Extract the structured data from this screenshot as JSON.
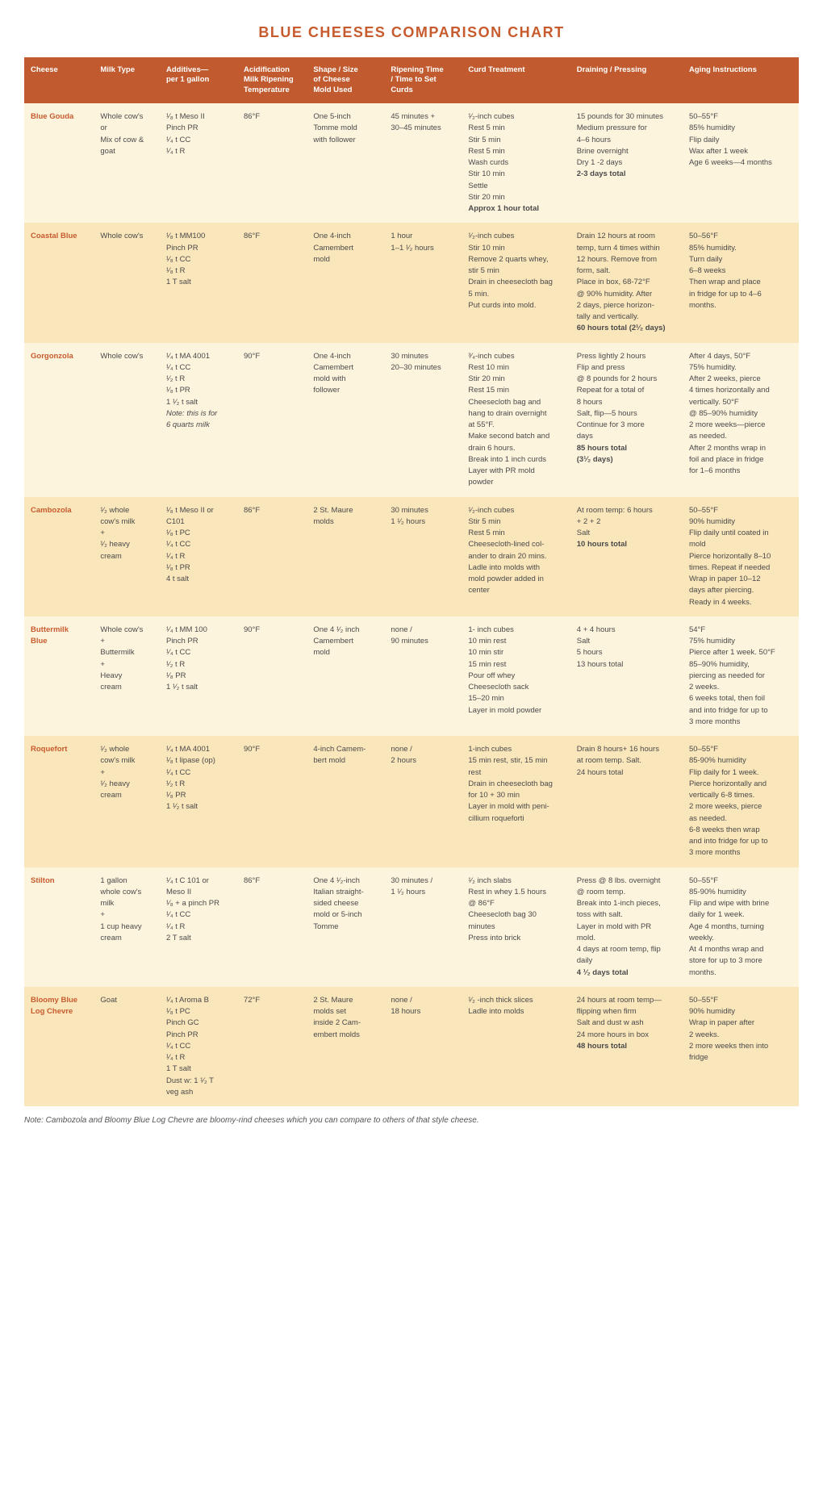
{
  "title": "BLUE CHEESES COMPARISON CHART",
  "footnote": "Note: Cambozola and Bloomy Blue Log Chevre are bloomy-rind cheeses which you can compare to others of that style cheese.",
  "columns": [
    "Cheese",
    "Milk Type",
    "Additives—\nper 1 gallon",
    "Acidification\nMilk Ripening\nTemperature",
    "Shape / Size\nof Cheese\nMold Used",
    "Ripening Time\n/ Time to Set\nCurds",
    "Curd Treatment",
    "Draining / Pressing",
    "Aging Instructions"
  ],
  "rows": [
    {
      "name": "Blue Gouda",
      "cells": [
        "Whole cow's\nor\nMix of cow &\ngoat",
        "¹⁄₈ t Meso II\nPinch PR\n¹⁄₄ t CC\n¹⁄₄ t R",
        "86°F",
        "One 5-inch\nTomme mold\nwith follower",
        "45 minutes +\n30–45 minutes",
        "¹⁄₂-inch cubes\nRest 5 min\nStir 5 min\nRest 5 min\nWash curds\nStir 10 min\nSettle\nStir 20 min\n<b>Approx 1 hour total</b>",
        "15 pounds for 30 minutes\nMedium pressure for\n4–6 hours\nBrine overnight\nDry 1 -2 days\n<b>2-3 days total</b>",
        "50–55°F\n85% humidity\nFlip daily\nWax after 1 week\nAge 6 weeks—4 months"
      ]
    },
    {
      "name": "Coastal Blue",
      "cells": [
        "Whole cow's",
        "¹⁄₈ t MM100\nPinch PR\n¹⁄₈ t CC\n¹⁄₈ t R\n1 T salt",
        "86°F",
        "One 4-inch\nCamembert\nmold",
        "1 hour\n1–1 ¹⁄₂ hours",
        "¹⁄₂-inch cubes\nStir 10 min\nRemove 2 quarts whey,\nstir 5 min\nDrain in cheesecloth bag\n5 min.\nPut curds into mold.",
        "Drain 12 hours at room\ntemp, turn 4 times within\n12 hours. Remove from\nform, salt.\nPlace in box, 68-72°F\n@ 90% humidity. After\n2 days, pierce horizon-\ntally and vertically.\n<b>60 hours total (2¹⁄₂ days)</b>",
        "50–56°F\n85% humidity.\nTurn daily\n6–8 weeks\nThen wrap and place\nin fridge for up to 4–6\nmonths."
      ]
    },
    {
      "name": "Gorgonzola",
      "cells": [
        "Whole cow's",
        "¹⁄₄ t MA 4001\n¹⁄₄ t CC\n¹⁄₂ t R\n¹⁄₈ t PR\n1 ¹⁄₂ t salt\n<i>Note: this is for\n6 quarts milk</i>",
        "90°F",
        "One 4-inch\nCamembert\nmold with\nfollower",
        "30 minutes\n20–30 minutes",
        "³⁄₄-inch cubes\nRest 10 min\nStir 20 min\nRest 15 min\nCheesecloth bag and\nhang to drain overnight\nat 55°F.\nMake second batch and\ndrain 6 hours.\nBreak into 1 inch curds\nLayer with PR mold\npowder",
        "Press lightly 2 hours\nFlip and press\n@ 8 pounds for 2 hours\nRepeat for a total of\n8 hours\nSalt, flip—5 hours\nContinue for 3 more\ndays\n<b>85 hours total\n(3¹⁄₂ days)</b>",
        "After 4 days, 50°F\n75% humidity.\nAfter 2 weeks, pierce\n4 times horizontally and\nvertically. 50°F\n@ 85–90% humidity\n2 more weeks—pierce\nas needed.\nAfter 2 months wrap in\nfoil and place in fridge\nfor 1–6 months"
      ]
    },
    {
      "name": "Cambozola",
      "cells": [
        "¹⁄₂ whole\ncow's milk\n+\n¹⁄₂ heavy\ncream",
        "¹⁄₈ t Meso II or\nC101\n¹⁄₈ t PC\n¹⁄₄ t CC\n¹⁄₄ t R\n¹⁄₈ t PR\n4 t salt",
        "86°F",
        "2 St. Maure\nmolds",
        "30 minutes\n1 ¹⁄₂ hours",
        "¹⁄₂-inch cubes\nStir 5 min\nRest 5 min\nCheesecloth-lined col-\nander to drain 20 mins.\nLadle into molds with\nmold powder added in\ncenter",
        "At room temp: 6 hours\n+ 2 + 2\nSalt\n<b>10 hours total</b>",
        "50–55°F\n90% humidity\nFlip daily until coated in\nmold\nPierce horizontally 8–10\ntimes. Repeat if needed\nWrap in paper 10–12\ndays after piercing.\nReady in 4 weeks."
      ]
    },
    {
      "name": "Buttermilk\nBlue",
      "cells": [
        "Whole cow's\n+\nButtermilk\n+\nHeavy\ncream",
        "¹⁄₄ t MM 100\nPinch PR\n¹⁄₄ t CC\n¹⁄₂ t R\n¹⁄₈ PR\n1 ¹⁄₂ t salt",
        "90°F",
        "One 4 ¹⁄₂ inch\nCamembert\nmold",
        "none /\n90 minutes",
        "1- inch cubes\n10 min rest\n10 min stir\n15 min rest\nPour off whey\nCheesecloth sack\n15–20 min\nLayer in mold powder",
        "4 + 4 hours\nSalt\n5 hours\n13 hours total",
        "54°F\n75% humidity\nPierce after 1 week. 50°F\n85–90% humidity,\npiercing as needed for\n2 weeks.\n6 weeks total, then foil\nand into fridge for up to\n3 more months"
      ]
    },
    {
      "name": "Roquefort",
      "cells": [
        "¹⁄₂ whole\ncow's milk\n+\n¹⁄₂ heavy\ncream",
        "¹⁄₄ t MA 4001\n¹⁄₈ t lipase (op)\n¹⁄₄ t CC\n¹⁄₂ t R\n¹⁄₈ PR\n1 ¹⁄₂ t salt",
        "90°F",
        "4-inch Camem-\nbert mold",
        "none /\n2 hours",
        "1-inch cubes\n15 min rest, stir, 15 min\nrest\nDrain in cheesecloth bag\nfor 10 + 30 min\nLayer in mold with peni-\ncillium roqueforti",
        "Drain 8 hours+ 16 hours\nat room temp. Salt.\n24 hours total",
        "50–55°F\n85-90% humidity\nFlip daily for 1 week.\nPierce horizontally and\nvertically 6-8 times.\n2 more weeks, pierce\nas needed.\n6-8 weeks then wrap\nand into fridge for up to\n3 more months"
      ]
    },
    {
      "name": "Stilton",
      "cells": [
        "1 gallon\nwhole cow's\nmilk\n+\n1 cup heavy\ncream",
        "¹⁄₄ t C 101 or\nMeso II\n¹⁄₈ + a pinch PR\n¹⁄₄ t CC\n¹⁄₄ t R\n2 T salt",
        "86°F",
        "One 4 ¹⁄₂-inch\nItalian straight-\nsided cheese\nmold or 5-inch\nTomme",
        "30 minutes /\n1 ¹⁄₂ hours",
        "¹⁄₂ inch slabs\nRest in whey 1.5 hours\n@ 86°F\nCheesecloth bag 30\nminutes\nPress into brick",
        "Press @ 8 lbs. overnight\n@ room temp.\nBreak into 1-inch pieces,\ntoss with salt.\nLayer in mold with PR\nmold.\n4 days at room temp, flip\ndaily\n<b>4 ¹⁄₂ days total</b>",
        "50–55°F\n85-90% humidity\nFlip and wipe with brine\ndaily for 1 week.\nAge 4 months, turning\nweekly.\nAt 4 months wrap and\nstore for up to 3 more\nmonths."
      ]
    },
    {
      "name": "Bloomy Blue\nLog Chevre",
      "cells": [
        "Goat",
        "¹⁄₄ t Aroma B\n¹⁄₈ t PC\nPinch GC\nPinch PR\n¹⁄₄ t CC\n¹⁄₄ t R\n1 T salt\nDust w: 1 ¹⁄₂ T\nveg ash",
        "72°F",
        "2 St. Maure\nmolds set\ninside 2 Cam-\nembert molds",
        "none /\n18 hours",
        "¹⁄₂ -inch thick slices\nLadle into molds",
        "24 hours at room temp—\nflipping when firm\nSalt and dust w ash\n24 more hours in box\n<b>48 hours total</b>",
        "50–55°F\n90% humidity\nWrap in paper after\n2 weeks.\n2 more weeks then into\nfridge"
      ]
    }
  ]
}
